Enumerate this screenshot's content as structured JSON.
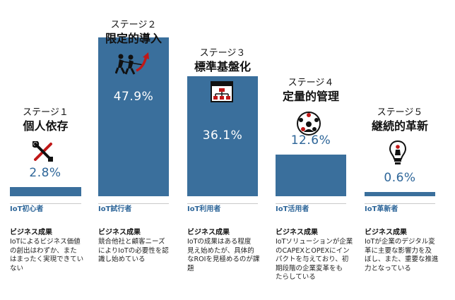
{
  "chart_data": {
    "type": "bar",
    "title": "",
    "xlabel": "",
    "ylabel": "",
    "ylim": [
      0,
      50
    ],
    "grid": false,
    "legend": "none",
    "unit": "%",
    "stages": [
      {
        "label": "ステージ１",
        "name": "個人依存",
        "category": "IoT初心者",
        "value": 2.8,
        "value_text": "2.8%",
        "icon": "wrench-screwdriver-icon",
        "outcome_head": "ビジネス成果",
        "outcome_lines": [
          "IoTによるビジネス価値",
          "の創出はわずか、また",
          "はまったく実現できてい",
          "ない"
        ]
      },
      {
        "label": "ステージ２",
        "name": "限定的導入",
        "category": "IoT試行者",
        "value": 47.9,
        "value_text": "47.9%",
        "icon": "tug-of-war-arrow-icon",
        "outcome_head": "ビジネス成果",
        "outcome_lines": [
          "競合他社と顧客ニーズ",
          "によりIoTの必要性を認",
          "識し始めている"
        ]
      },
      {
        "label": "ステージ３",
        "name": "標準基盤化",
        "category": "IoT利用者",
        "value": 36.1,
        "value_text": "36.1%",
        "icon": "org-chart-window-icon",
        "outcome_head": "ビジネス成果",
        "outcome_lines": [
          "IoTの成果はある程度",
          "見え始めたが、具体的",
          "なROIを見極めるのが課",
          "題"
        ]
      },
      {
        "label": "ステージ４",
        "name": "定量的管理",
        "category": "IoT活用者",
        "value": 12.6,
        "value_text": "12.6%",
        "icon": "network-people-icon",
        "outcome_head": "ビジネス成果",
        "outcome_lines": [
          "IoTソリューションが企業",
          "のCAPEXとOPEXにイン",
          "パクトを与えており、初",
          "期段階の企業変革をも",
          "たらしている"
        ]
      },
      {
        "label": "ステージ５",
        "name": "継続的革新",
        "category": "IoT革新者",
        "value": 0.6,
        "value_text": "0.6%",
        "icon": "lightbulb-person-icon",
        "outcome_head": "ビジネス成果",
        "outcome_lines": [
          "IoTが企業のデジタル変",
          "革に主要な影響力を及",
          "ぼし、また、重要な推進",
          "力となっている"
        ]
      }
    ]
  },
  "colors": {
    "bar": "#3a6f9c",
    "category_text": "#2e6699",
    "pct_above": "#2e6699"
  }
}
